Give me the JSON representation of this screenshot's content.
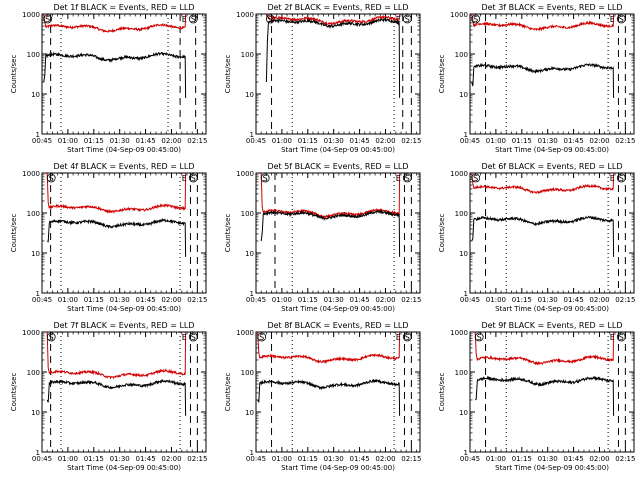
{
  "figure": {
    "ylabel": "Counts/sec",
    "xlabel": "Start Time (04-Sep-09 00:45:00)",
    "x_ticks": [
      "00:45",
      "01:00",
      "01:15",
      "01:30",
      "01:45",
      "02:00",
      "02:15"
    ],
    "y_ticks": [
      "1",
      "10",
      "100",
      "1000"
    ],
    "marker_start": "S",
    "marker_end": "E",
    "colors": {
      "events": "#000000",
      "lld": "#d00000",
      "background": "#ffffff"
    }
  },
  "chart_data": [
    {
      "type": "line",
      "title": "Det 1f BLACK = Events, RED = LLD",
      "x_range_min": [
        0,
        95
      ],
      "ylim": [
        1,
        1000
      ],
      "yscale": "log",
      "events_level": 85,
      "lld_level": 450,
      "start_min": 1,
      "end_min": 83,
      "dotted_min": [
        11,
        73
      ],
      "dashed_min": [
        5,
        80,
        89
      ],
      "series": [
        {
          "name": "BLACK = Events",
          "color": "#000000"
        },
        {
          "name": "RED = LLD",
          "color": "#d00000"
        }
      ]
    },
    {
      "type": "line",
      "title": "Det 2f BLACK = Events, RED = LLD",
      "x_range_min": [
        0,
        95
      ],
      "ylim": [
        1,
        1000
      ],
      "yscale": "log",
      "events_level": 600,
      "lld_level": 700,
      "start_min": 6,
      "end_min": 83,
      "dotted_min": [
        21,
        80
      ],
      "dashed_min": [
        9,
        85,
        90
      ],
      "series": [
        {
          "name": "BLACK = Events",
          "color": "#000000"
        },
        {
          "name": "RED = LLD",
          "color": "#d00000"
        }
      ]
    },
    {
      "type": "line",
      "title": "Det 3f BLACK = Events, RED = LLD",
      "x_range_min": [
        0,
        95
      ],
      "ylim": [
        1,
        1000
      ],
      "yscale": "log",
      "events_level": 45,
      "lld_level": 500,
      "start_min": 1,
      "end_min": 83,
      "dotted_min": [
        21,
        80
      ],
      "dashed_min": [
        9,
        86,
        90
      ],
      "series": [
        {
          "name": "BLACK = Events",
          "color": "#000000"
        },
        {
          "name": "RED = LLD",
          "color": "#d00000"
        }
      ]
    },
    {
      "type": "line",
      "title": "Det 4f BLACK = Events, RED = LLD",
      "x_range_min": [
        0,
        95
      ],
      "ylim": [
        1,
        1000
      ],
      "yscale": "log",
      "events_level": 55,
      "lld_level": 130,
      "start_min": 3,
      "end_min": 83,
      "dotted_min": [
        11,
        80
      ],
      "dashed_min": [
        5,
        86,
        90
      ],
      "series": [
        {
          "name": "BLACK = Events",
          "color": "#000000"
        },
        {
          "name": "RED = LLD",
          "color": "#d00000"
        }
      ]
    },
    {
      "type": "line",
      "title": "Det 5f BLACK = Events, RED = LLD",
      "x_range_min": [
        0,
        95
      ],
      "ylim": [
        1,
        1000
      ],
      "yscale": "log",
      "events_level": 90,
      "lld_level": 100,
      "start_min": 3,
      "end_min": 83,
      "dotted_min": [
        21,
        80
      ],
      "dashed_min": [
        11,
        86,
        90
      ],
      "series": [
        {
          "name": "BLACK = Events",
          "color": "#000000"
        },
        {
          "name": "RED = LLD",
          "color": "#d00000"
        }
      ]
    },
    {
      "type": "line",
      "title": "Det 6f BLACK = Events, RED = LLD",
      "x_range_min": [
        0,
        95
      ],
      "ylim": [
        1,
        1000
      ],
      "yscale": "log",
      "events_level": 65,
      "lld_level": 400,
      "start_min": 1,
      "end_min": 83,
      "dotted_min": [
        21,
        80
      ],
      "dashed_min": [
        9,
        86,
        90
      ],
      "series": [
        {
          "name": "BLACK = Events",
          "color": "#000000"
        },
        {
          "name": "RED = LLD",
          "color": "#d00000"
        }
      ]
    },
    {
      "type": "line",
      "title": "Det 7f BLACK = Events, RED = LLD",
      "x_range_min": [
        0,
        95
      ],
      "ylim": [
        1,
        1000
      ],
      "yscale": "log",
      "events_level": 50,
      "lld_level": 90,
      "start_min": 3,
      "end_min": 83,
      "dotted_min": [
        11,
        80
      ],
      "dashed_min": [
        5,
        86,
        90
      ],
      "series": [
        {
          "name": "BLACK = Events",
          "color": "#000000"
        },
        {
          "name": "RED = LLD",
          "color": "#d00000"
        }
      ]
    },
    {
      "type": "line",
      "title": "Det 8f BLACK = Events, RED = LLD",
      "x_range_min": [
        0,
        95
      ],
      "ylim": [
        1,
        1000
      ],
      "yscale": "log",
      "events_level": 50,
      "lld_level": 220,
      "start_min": 1,
      "end_min": 83,
      "dotted_min": [
        21,
        80
      ],
      "dashed_min": [
        9,
        86,
        90
      ],
      "series": [
        {
          "name": "BLACK = Events",
          "color": "#000000"
        },
        {
          "name": "RED = LLD",
          "color": "#d00000"
        }
      ]
    },
    {
      "type": "line",
      "title": "Det 9f BLACK = Events, RED = LLD",
      "x_range_min": [
        0,
        95
      ],
      "ylim": [
        1,
        1000
      ],
      "yscale": "log",
      "events_level": 60,
      "lld_level": 200,
      "start_min": 3,
      "end_min": 83,
      "dotted_min": [
        21,
        80
      ],
      "dashed_min": [
        9,
        86,
        90
      ],
      "series": [
        {
          "name": "BLACK = Events",
          "color": "#000000"
        },
        {
          "name": "RED = LLD",
          "color": "#d00000"
        }
      ]
    }
  ]
}
